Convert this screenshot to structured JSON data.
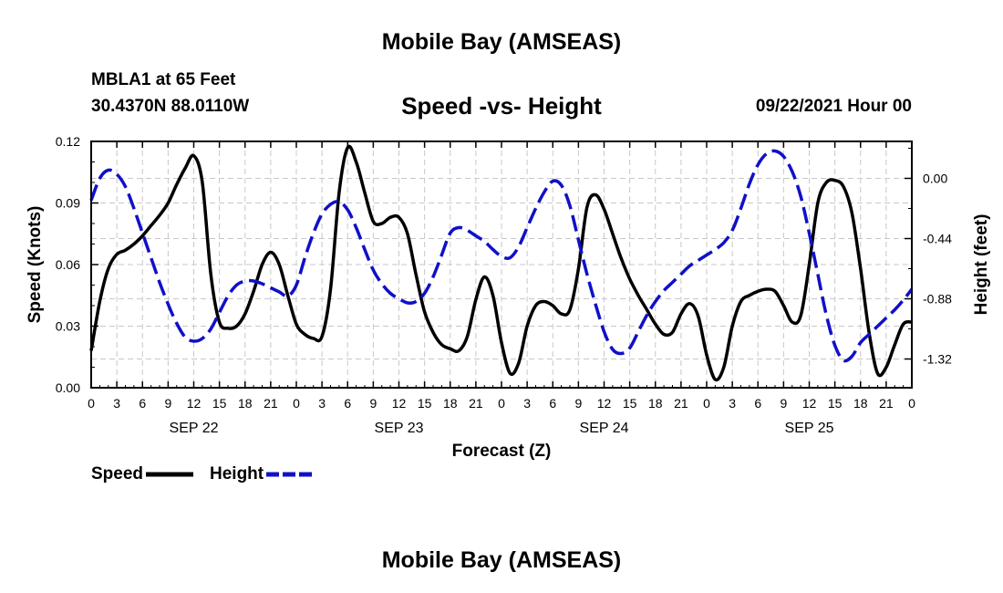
{
  "header": {
    "top_title": "Mobile Bay (AMSEAS)",
    "station_name": "MBLA1 at 65 Feet",
    "station_coords": "30.4370N  88.0110W",
    "chart_title": "Speed -vs- Height",
    "issue_time": "09/22/2021 Hour 00"
  },
  "footer": {
    "bottom_title": "Mobile Bay (AMSEAS)"
  },
  "legend": {
    "speed_label": "Speed",
    "height_label": "Height"
  },
  "colors": {
    "speed": "#000000",
    "height": "#1010c8",
    "grid": "#c8c8c8"
  },
  "chart_data": {
    "type": "line",
    "title": "Speed -vs- Height",
    "xlabel": "Forecast (Z)",
    "ylabel_left": "Speed (Knots)",
    "ylabel_right": "Height (feet)",
    "x_range_hours": [
      0,
      96
    ],
    "x_tick_labels": [
      "0",
      "3",
      "6",
      "9",
      "12",
      "15",
      "18",
      "21",
      "0",
      "3",
      "6",
      "9",
      "12",
      "15",
      "18",
      "21",
      "0",
      "3",
      "6",
      "9",
      "12",
      "15",
      "18",
      "21",
      "0",
      "3",
      "6",
      "9",
      "12",
      "15",
      "18",
      "21",
      "0"
    ],
    "day_labels": [
      {
        "label": "SEP 22",
        "hour": 12
      },
      {
        "label": "SEP 23",
        "hour": 36
      },
      {
        "label": "SEP 24",
        "hour": 60
      },
      {
        "label": "SEP 25",
        "hour": 84
      }
    ],
    "left_axis": {
      "ylim": [
        0,
        0.12
      ],
      "ticks": [
        0.0,
        0.03,
        0.06,
        0.09,
        0.12
      ],
      "tick_labels": [
        "0.00",
        "0.03",
        "0.06",
        "0.09",
        "0.12"
      ]
    },
    "right_axis": {
      "ylim": [
        -1.53,
        0.27
      ],
      "ticks": [
        0.0,
        -0.44,
        -0.88,
        -1.32
      ],
      "tick_labels": [
        "0.00",
        "-0.44",
        "-0.88",
        "-1.32"
      ]
    },
    "grid": true,
    "series": [
      {
        "name": "Speed",
        "axis": "left",
        "style": "solid",
        "x": [
          0,
          1,
          2,
          3,
          4,
          5,
          6,
          7,
          8,
          9,
          10,
          11,
          12,
          13,
          14,
          15,
          16,
          17,
          18,
          19,
          20,
          21,
          22,
          23,
          24,
          25,
          26,
          27,
          28,
          29,
          30,
          31,
          32,
          33,
          34,
          35,
          36,
          37,
          38,
          39,
          40,
          41,
          42,
          43,
          44,
          45,
          46,
          47,
          48,
          49,
          50,
          51,
          52,
          53,
          54,
          55,
          56,
          57,
          58,
          59,
          60,
          61,
          62,
          63,
          64,
          65,
          66,
          67,
          68,
          69,
          70,
          71,
          72,
          73,
          74,
          75,
          76,
          77,
          78,
          79,
          80,
          81,
          82,
          83,
          84,
          85,
          86,
          87,
          88,
          89,
          90,
          91,
          92,
          93,
          94,
          95,
          96
        ],
        "values": [
          0.018,
          0.042,
          0.058,
          0.065,
          0.067,
          0.07,
          0.074,
          0.079,
          0.084,
          0.09,
          0.099,
          0.107,
          0.113,
          0.1,
          0.055,
          0.032,
          0.029,
          0.03,
          0.036,
          0.047,
          0.06,
          0.066,
          0.06,
          0.045,
          0.031,
          0.026,
          0.024,
          0.025,
          0.048,
          0.095,
          0.117,
          0.11,
          0.095,
          0.081,
          0.08,
          0.083,
          0.083,
          0.075,
          0.055,
          0.037,
          0.027,
          0.021,
          0.019,
          0.018,
          0.025,
          0.043,
          0.054,
          0.045,
          0.022,
          0.007,
          0.012,
          0.03,
          0.04,
          0.042,
          0.04,
          0.036,
          0.038,
          0.058,
          0.088,
          0.094,
          0.087,
          0.075,
          0.063,
          0.053,
          0.045,
          0.038,
          0.031,
          0.026,
          0.027,
          0.036,
          0.041,
          0.035,
          0.016,
          0.004,
          0.01,
          0.03,
          0.042,
          0.045,
          0.047,
          0.048,
          0.047,
          0.04,
          0.032,
          0.035,
          0.06,
          0.09,
          0.1,
          0.101,
          0.098,
          0.085,
          0.058,
          0.027,
          0.007,
          0.01,
          0.021,
          0.031,
          0.032
        ]
      },
      {
        "name": "Height",
        "axis": "right",
        "style": "dashed",
        "x": [
          0,
          1,
          2,
          3,
          4,
          5,
          6,
          7,
          8,
          9,
          10,
          11,
          12,
          13,
          14,
          15,
          16,
          17,
          18,
          19,
          20,
          21,
          22,
          23,
          24,
          25,
          26,
          27,
          28,
          29,
          30,
          31,
          32,
          33,
          34,
          35,
          36,
          37,
          38,
          39,
          40,
          41,
          42,
          43,
          44,
          45,
          46,
          47,
          48,
          49,
          50,
          51,
          52,
          53,
          54,
          55,
          56,
          57,
          58,
          59,
          60,
          61,
          62,
          63,
          64,
          65,
          66,
          67,
          68,
          69,
          70,
          71,
          72,
          73,
          74,
          75,
          76,
          77,
          78,
          79,
          80,
          81,
          82,
          83,
          84,
          85,
          86,
          87,
          88,
          89,
          90,
          91,
          92,
          93,
          94,
          95,
          96
        ],
        "values": [
          -0.16,
          0.0,
          0.06,
          0.03,
          -0.06,
          -0.22,
          -0.4,
          -0.58,
          -0.76,
          -0.92,
          -1.06,
          -1.16,
          -1.19,
          -1.17,
          -1.1,
          -0.98,
          -0.86,
          -0.78,
          -0.75,
          -0.75,
          -0.77,
          -0.8,
          -0.83,
          -0.86,
          -0.78,
          -0.58,
          -0.4,
          -0.26,
          -0.19,
          -0.17,
          -0.23,
          -0.36,
          -0.52,
          -0.67,
          -0.77,
          -0.84,
          -0.88,
          -0.91,
          -0.9,
          -0.84,
          -0.72,
          -0.56,
          -0.4,
          -0.36,
          -0.38,
          -0.42,
          -0.46,
          -0.52,
          -0.57,
          -0.58,
          -0.5,
          -0.36,
          -0.22,
          -0.1,
          -0.02,
          -0.05,
          -0.2,
          -0.45,
          -0.7,
          -0.92,
          -1.12,
          -1.25,
          -1.28,
          -1.24,
          -1.12,
          -1.0,
          -0.9,
          -0.82,
          -0.76,
          -0.7,
          -0.64,
          -0.6,
          -0.56,
          -0.52,
          -0.47,
          -0.38,
          -0.22,
          -0.04,
          0.1,
          0.18,
          0.2,
          0.16,
          0.05,
          -0.13,
          -0.4,
          -0.7,
          -1.0,
          -1.22,
          -1.33,
          -1.3,
          -1.2,
          -1.14,
          -1.08,
          -1.02,
          -0.96,
          -0.89,
          -0.81
        ]
      }
    ]
  }
}
